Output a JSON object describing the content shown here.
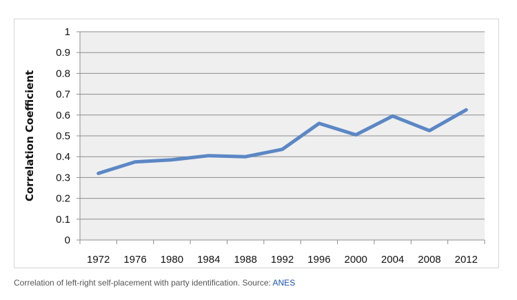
{
  "chart_data": {
    "type": "line",
    "title": "",
    "xlabel": "",
    "ylabel": "Correlation Coefficient",
    "ylim": [
      0,
      1
    ],
    "yticks": [
      "0",
      "0.1",
      "0.2",
      "0.3",
      "0.4",
      "0.5",
      "0.6",
      "0.7",
      "0.8",
      "0.9",
      "1"
    ],
    "categories": [
      "1972",
      "1976",
      "1980",
      "1984",
      "1988",
      "1992",
      "1996",
      "2000",
      "2004",
      "2008",
      "2012"
    ],
    "series": [
      {
        "values": [
          0.32,
          0.375,
          0.385,
          0.405,
          0.4,
          0.435,
          0.56,
          0.505,
          0.595,
          0.525,
          0.625
        ]
      }
    ],
    "grid": true,
    "line_color": "#5b87c5",
    "plot_background": "#efefef"
  },
  "caption": {
    "text": "Correlation of left-right self-placement with party identification. Source: ",
    "link_text": "ANES"
  }
}
